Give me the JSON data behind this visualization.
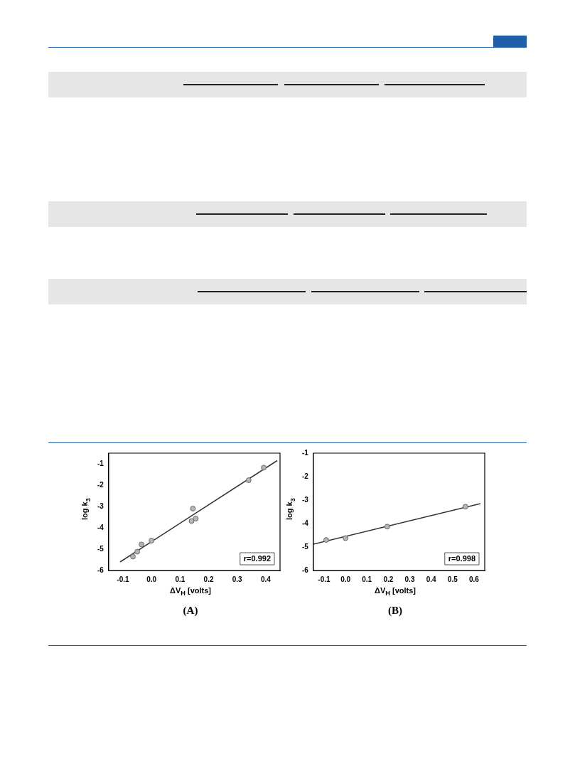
{
  "chart_data": [
    {
      "type": "scatter",
      "title": "(A)",
      "xlabel": "ΔV$_{H}$ [volts]",
      "ylabel": "log k$_{3}$",
      "grid": false,
      "xlim": [
        -0.15,
        0.45
      ],
      "xticks": [
        -0.1,
        {
          "value": 0,
          "label": "0.0"
        },
        0.1,
        0.2,
        0.3,
        0.4
      ],
      "ylim": [
        -6,
        -0.5
      ],
      "yticks": [
        -6,
        -5,
        -4,
        -3,
        -2,
        -1
      ],
      "annotations": [
        "r=0.992"
      ],
      "series": [
        {
          "marker": "circle",
          "color": "#b4b4b4",
          "x": [
            -0.065,
            -0.05,
            -0.035,
            0.0,
            0.14,
            0.145,
            0.155,
            0.34,
            0.393
          ],
          "values": [
            -5.35,
            -5.12,
            -4.78,
            -4.6,
            -3.68,
            -3.1,
            -3.57,
            -1.77,
            -1.18
          ]
        },
        {
          "type": "line",
          "color": "#333333",
          "x": [
            -0.11,
            0.44
          ],
          "values": [
            -5.6,
            -0.85
          ]
        }
      ]
    },
    {
      "type": "scatter",
      "title": "(B)",
      "xlabel": "ΔV$_{H}$ [volts]",
      "ylabel": "log k$_{3}$",
      "grid": false,
      "xlim": [
        -0.15,
        0.65
      ],
      "xticks": [
        -0.1,
        {
          "value": 0,
          "label": "0.0"
        },
        0.1,
        0.2,
        0.3,
        0.4,
        0.5,
        0.6
      ],
      "ylim": [
        -6,
        -1
      ],
      "yticks": [
        -6,
        -5,
        -4,
        -3,
        -2,
        -1
      ],
      "annotations": [
        "r=0.998"
      ],
      "series": [
        {
          "marker": "circle",
          "color": "#b4b4b4",
          "x": [
            -0.09,
            0.0,
            0.195,
            0.56
          ],
          "values": [
            -4.7,
            -4.62,
            -4.13,
            -3.28
          ]
        },
        {
          "type": "line",
          "color": "#333333",
          "x": [
            -0.15,
            0.63
          ],
          "values": [
            -4.88,
            -3.15
          ]
        }
      ]
    }
  ]
}
